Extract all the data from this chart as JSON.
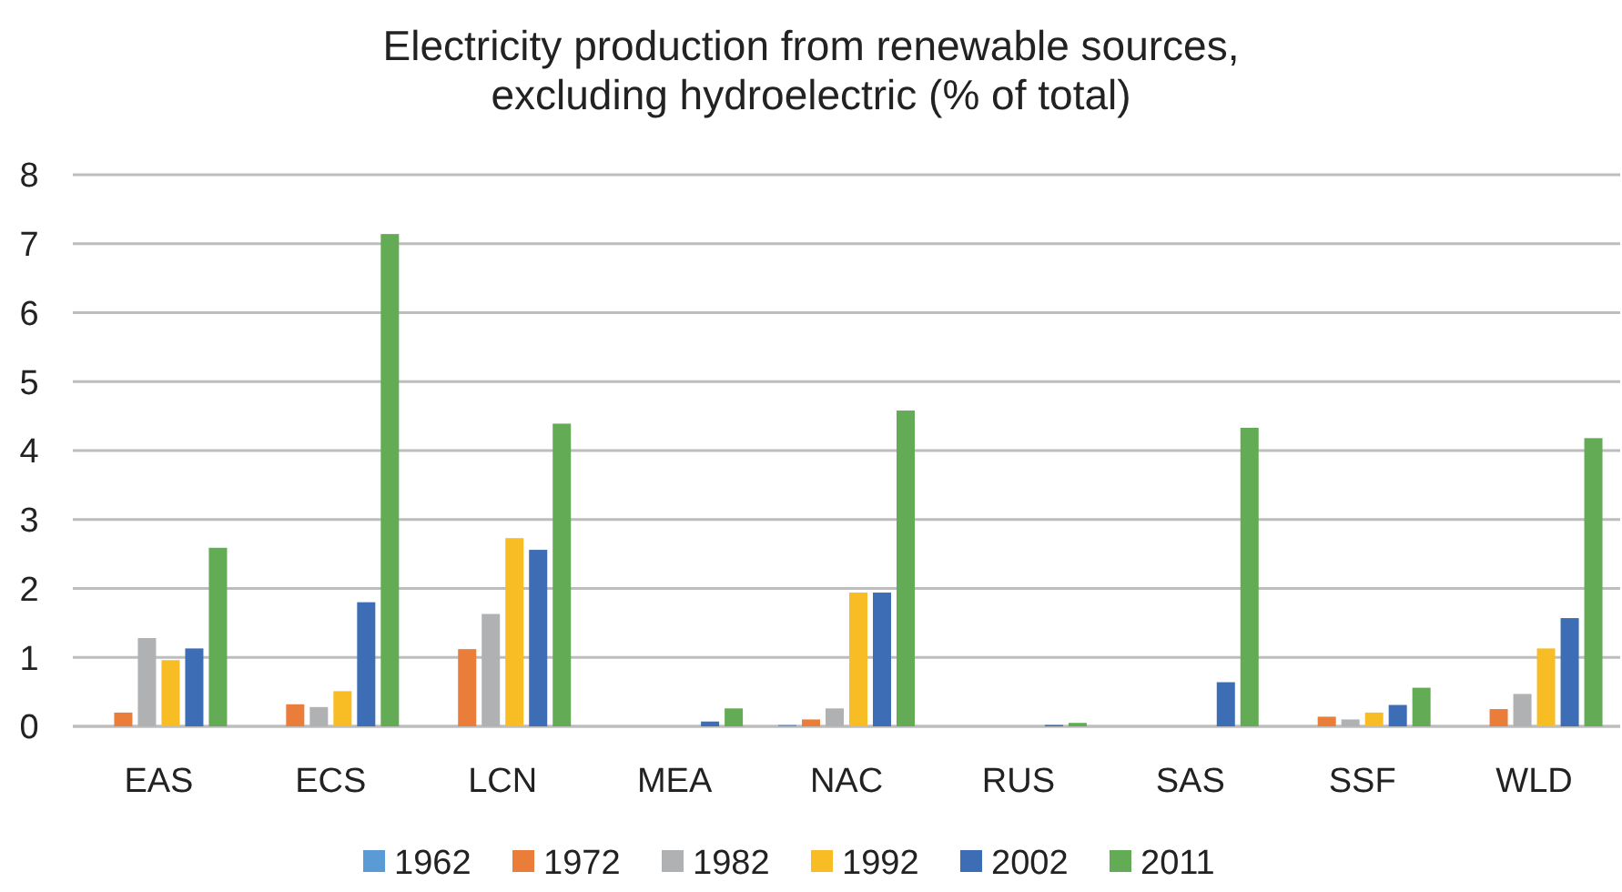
{
  "chart_data": {
    "type": "bar",
    "title": "Electricity production from renewable sources,\nexcluding hydroelectric (% of total)",
    "categories": [
      "EAS",
      "ECS",
      "LCN",
      "MEA",
      "NAC",
      "RUS",
      "SAS",
      "SSF",
      "WLD"
    ],
    "series": [
      {
        "name": "1962",
        "color": "#5b9bd5",
        "values": [
          null,
          null,
          null,
          null,
          0.02,
          null,
          null,
          null,
          null
        ]
      },
      {
        "name": "1972",
        "color": "#ea7d3a",
        "values": [
          0.2,
          0.32,
          1.12,
          null,
          0.1,
          null,
          null,
          0.14,
          0.25
        ]
      },
      {
        "name": "1982",
        "color": "#b0b1b3",
        "values": [
          1.28,
          0.28,
          1.63,
          null,
          0.26,
          null,
          null,
          0.1,
          0.47
        ]
      },
      {
        "name": "1992",
        "color": "#f8bc25",
        "values": [
          0.96,
          0.51,
          2.73,
          0.01,
          1.94,
          0.01,
          0.01,
          0.2,
          1.13
        ]
      },
      {
        "name": "2002",
        "color": "#3d6db5",
        "values": [
          1.13,
          1.8,
          2.56,
          0.07,
          1.94,
          0.02,
          0.64,
          0.31,
          1.57
        ]
      },
      {
        "name": "2011",
        "color": "#64ab55",
        "values": [
          2.59,
          7.14,
          4.39,
          0.26,
          4.58,
          0.05,
          4.33,
          0.56,
          4.18
        ]
      }
    ],
    "ylim": [
      0,
      8
    ],
    "yticks": [
      0,
      1,
      2,
      3,
      4,
      5,
      6,
      7,
      8
    ],
    "grid": "y",
    "legend": "bottom"
  }
}
